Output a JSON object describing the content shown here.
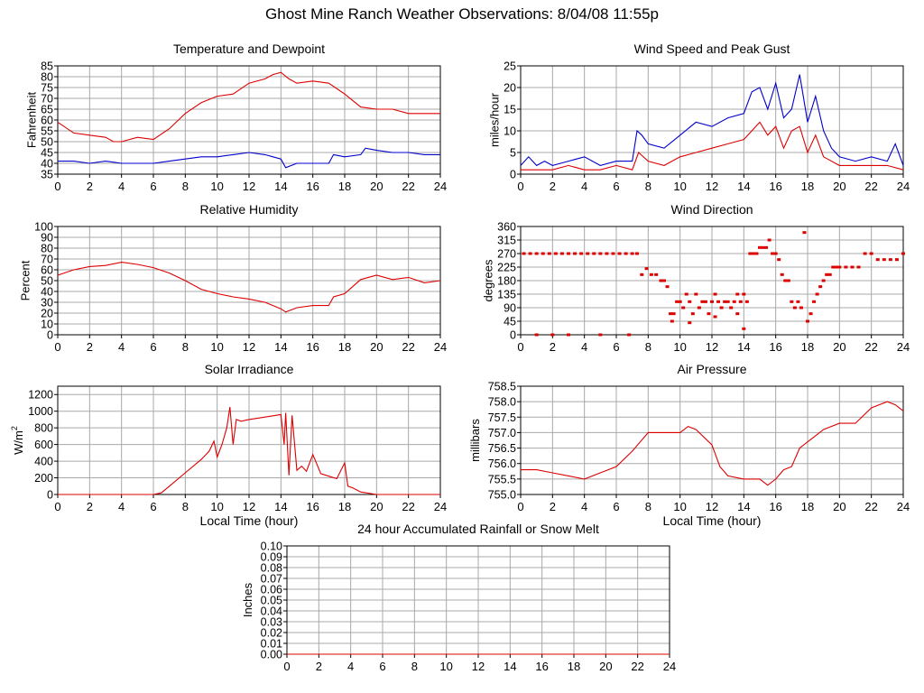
{
  "page": {
    "title": "Ghost Mine Ranch Weather Observations: 8/04/08 11:55p"
  },
  "colors": {
    "red": "#dd0000",
    "blue": "#0000cc",
    "grid": "#a8a8a8",
    "frame": "#000000"
  },
  "chart_data": [
    {
      "id": "temperature",
      "type": "line",
      "title": "Temperature and Dewpoint",
      "xlabel": "",
      "ylabel": "Fahrenheit",
      "xlim": [
        0,
        24
      ],
      "ylim": [
        35,
        85
      ],
      "xticks": [
        "0",
        "2",
        "4",
        "6",
        "8",
        "10",
        "12",
        "14",
        "16",
        "18",
        "20",
        "22",
        "24"
      ],
      "yticks": [
        "35",
        "40",
        "45",
        "50",
        "55",
        "60",
        "65",
        "70",
        "75",
        "80",
        "85"
      ],
      "series": [
        {
          "color": "red",
          "x": [
            0,
            1,
            2,
            3,
            3.5,
            4,
            5,
            6,
            7,
            8,
            9,
            10,
            11,
            12,
            13,
            13.5,
            14,
            14.5,
            15,
            16,
            17,
            18,
            19,
            20,
            21,
            22,
            23,
            24
          ],
          "y": [
            59,
            54,
            53,
            52,
            50,
            50,
            52,
            51,
            56,
            63,
            68,
            71,
            72,
            77,
            79,
            81,
            82,
            79,
            77,
            78,
            77,
            72,
            66,
            65,
            65,
            63,
            63,
            63
          ]
        },
        {
          "color": "blue",
          "x": [
            0,
            1,
            2,
            3,
            4,
            5,
            6,
            7,
            8,
            9,
            10,
            11,
            12,
            13,
            13.5,
            14,
            14.3,
            15,
            16,
            17,
            17.3,
            18,
            19,
            19.3,
            20,
            21,
            22,
            23,
            24
          ],
          "y": [
            41,
            41,
            40,
            41,
            40,
            40,
            40,
            41,
            42,
            43,
            43,
            44,
            45,
            44,
            43,
            42,
            38,
            40,
            40,
            40,
            44,
            43,
            44,
            47,
            46,
            45,
            45,
            44,
            44
          ]
        }
      ]
    },
    {
      "id": "wind",
      "type": "line",
      "title": "Wind Speed and Peak Gust",
      "xlabel": "",
      "ylabel": "miles/hour",
      "xlim": [
        0,
        24
      ],
      "ylim": [
        0,
        25
      ],
      "xticks": [
        "0",
        "2",
        "4",
        "6",
        "8",
        "10",
        "12",
        "14",
        "16",
        "18",
        "20",
        "22",
        "24"
      ],
      "yticks": [
        "0",
        "5",
        "10",
        "15",
        "20",
        "25"
      ],
      "series": [
        {
          "color": "blue",
          "x": [
            0,
            0.5,
            1,
            1.5,
            2,
            3,
            4,
            5,
            6,
            7,
            7.3,
            7.6,
            8,
            9,
            10,
            11,
            12,
            13,
            14,
            14.5,
            15,
            15.5,
            16,
            16.5,
            17,
            17.5,
            18,
            18.5,
            19,
            19.5,
            20,
            21,
            22,
            23,
            23.5,
            24
          ],
          "y": [
            2,
            4,
            2,
            3,
            2,
            3,
            4,
            2,
            3,
            3,
            10,
            9,
            7,
            6,
            9,
            12,
            11,
            13,
            14,
            19,
            20,
            15,
            21,
            13,
            15,
            23,
            12,
            18,
            10,
            6,
            4,
            3,
            4,
            3,
            7,
            2
          ]
        },
        {
          "color": "red",
          "x": [
            0,
            1,
            2,
            3,
            4,
            5,
            6,
            7,
            7.4,
            8,
            9,
            10,
            11,
            12,
            13,
            14,
            14.5,
            15,
            15.5,
            16,
            16.5,
            17,
            17.5,
            18,
            18.5,
            19,
            20,
            21,
            22,
            23,
            24
          ],
          "y": [
            1,
            1,
            1,
            2,
            1,
            1,
            2,
            1,
            5,
            3,
            2,
            4,
            5,
            6,
            7,
            8,
            10,
            12,
            9,
            11,
            6,
            10,
            11,
            5,
            9,
            4,
            2,
            2,
            2,
            2,
            1
          ]
        }
      ]
    },
    {
      "id": "humidity",
      "type": "line",
      "title": "Relative Humidity",
      "xlabel": "",
      "ylabel": "Percent",
      "xlim": [
        0,
        24
      ],
      "ylim": [
        0,
        100
      ],
      "xticks": [
        "0",
        "2",
        "4",
        "6",
        "8",
        "10",
        "12",
        "14",
        "16",
        "18",
        "20",
        "22",
        "24"
      ],
      "yticks": [
        "0",
        "10",
        "20",
        "30",
        "40",
        "50",
        "60",
        "70",
        "80",
        "90",
        "100"
      ],
      "series": [
        {
          "color": "red",
          "x": [
            0,
            1,
            2,
            3,
            4,
            5,
            6,
            7,
            8,
            9,
            10,
            11,
            12,
            13,
            14,
            14.3,
            15,
            16,
            17,
            17.3,
            18,
            19,
            20,
            21,
            22,
            23,
            24
          ],
          "y": [
            55,
            60,
            63,
            64,
            67,
            65,
            62,
            57,
            50,
            42,
            38,
            35,
            33,
            30,
            24,
            21,
            25,
            27,
            27,
            35,
            38,
            51,
            55,
            51,
            53,
            48,
            50
          ]
        }
      ]
    },
    {
      "id": "direction",
      "type": "scatter",
      "title": "Wind Direction",
      "xlabel": "",
      "ylabel": "degrees",
      "xlim": [
        0,
        24
      ],
      "ylim": [
        0,
        360
      ],
      "xticks": [
        "0",
        "2",
        "4",
        "6",
        "8",
        "10",
        "12",
        "14",
        "16",
        "18",
        "20",
        "22",
        "24"
      ],
      "yticks": [
        "0",
        "45",
        "90",
        "135",
        "180",
        "225",
        "270",
        "315",
        "360"
      ],
      "series": [
        {
          "color": "red",
          "x": [
            0.2,
            0.6,
            1,
            1.4,
            1.8,
            2.2,
            2.6,
            3,
            3.4,
            3.8,
            4.2,
            4.6,
            5,
            5.4,
            5.8,
            6.2,
            6.6,
            7,
            7.3,
            7.6,
            7.9,
            8.2,
            8.5,
            8.8,
            9,
            9.2,
            9.4,
            9.6,
            9.8,
            10,
            10.2,
            10.4,
            10.6,
            10.8,
            11,
            11.2,
            11.4,
            11.6,
            11.8,
            12,
            12.2,
            12.4,
            12.6,
            12.8,
            13,
            13.2,
            13.4,
            13.6,
            13.8,
            14,
            14.2,
            14.4,
            14.6,
            14.8,
            15,
            15.2,
            15.4,
            15.6,
            15.8,
            16,
            16.2,
            16.4,
            16.6,
            16.8,
            17,
            17.2,
            17.4,
            17.6,
            17.8,
            18,
            18.2,
            18.4,
            18.6,
            18.8,
            19,
            19.2,
            19.4,
            19.6,
            19.8,
            20,
            20.4,
            20.8,
            21.2,
            21.6,
            22,
            22.4,
            22.8,
            23.2,
            23.6,
            24,
            1,
            2,
            3,
            5,
            6.8,
            9.5,
            10.6,
            12.2,
            13.6,
            14
          ],
          "y": [
            270,
            270,
            270,
            270,
            270,
            270,
            270,
            270,
            270,
            270,
            270,
            270,
            270,
            270,
            270,
            270,
            270,
            270,
            270,
            200,
            220,
            200,
            200,
            180,
            180,
            160,
            70,
            70,
            110,
            110,
            90,
            135,
            110,
            70,
            135,
            90,
            110,
            110,
            70,
            110,
            135,
            110,
            90,
            110,
            110,
            90,
            110,
            135,
            110,
            135,
            110,
            270,
            270,
            270,
            290,
            290,
            290,
            315,
            270,
            270,
            250,
            200,
            180,
            180,
            110,
            90,
            110,
            90,
            340,
            45,
            70,
            110,
            135,
            160,
            180,
            200,
            200,
            225,
            225,
            225,
            225,
            225,
            225,
            270,
            270,
            250,
            250,
            250,
            250,
            270,
            0,
            0,
            0,
            0,
            0,
            45,
            40,
            60,
            70,
            20
          ]
        }
      ]
    },
    {
      "id": "solar",
      "type": "line",
      "title": "Solar Irradiance",
      "xlabel": "Local Time (hour)",
      "ylabel": "W/m",
      "ylabel_sup": "2",
      "xlim": [
        0,
        24
      ],
      "ylim": [
        0,
        1300
      ],
      "xticks": [
        "0",
        "2",
        "4",
        "6",
        "8",
        "10",
        "12",
        "14",
        "16",
        "18",
        "20",
        "22",
        "24"
      ],
      "yticks": [
        "0",
        "200",
        "400",
        "600",
        "800",
        "1000",
        "1200"
      ],
      "series": [
        {
          "color": "red",
          "x": [
            0,
            6,
            6.5,
            7,
            8,
            9,
            9.5,
            9.8,
            10,
            10.3,
            10.6,
            10.8,
            11,
            11.2,
            11.5,
            12,
            13,
            14,
            14.2,
            14.3,
            14.5,
            14.7,
            15,
            15.3,
            15.6,
            16,
            16.5,
            17,
            17.5,
            18,
            18.2,
            18.5,
            19,
            20,
            21,
            22,
            23,
            24
          ],
          "y": [
            0,
            0,
            20,
            100,
            260,
            420,
            520,
            640,
            450,
            600,
            800,
            1050,
            600,
            900,
            880,
            900,
            930,
            960,
            600,
            980,
            230,
            950,
            290,
            340,
            280,
            480,
            250,
            220,
            190,
            380,
            100,
            80,
            30,
            0,
            0,
            0,
            0,
            0
          ]
        }
      ]
    },
    {
      "id": "pressure",
      "type": "line",
      "title": "Air Pressure",
      "xlabel": "Local Time (hour)",
      "ylabel": "millibars",
      "xlim": [
        0,
        24
      ],
      "ylim": [
        755.0,
        758.5
      ],
      "xticks": [
        "0",
        "2",
        "4",
        "6",
        "8",
        "10",
        "12",
        "14",
        "16",
        "18",
        "20",
        "22",
        "24"
      ],
      "yticks": [
        "755.0",
        "755.5",
        "756.0",
        "756.5",
        "757.0",
        "757.5",
        "758.0",
        "758.5"
      ],
      "series": [
        {
          "color": "red",
          "x": [
            0,
            1,
            2,
            3,
            4,
            5,
            6,
            7,
            8,
            9,
            10,
            10.5,
            11,
            12,
            12.5,
            13,
            14,
            15,
            15.5,
            16,
            16.5,
            17,
            17.5,
            18,
            18.5,
            19,
            20,
            21,
            22,
            23,
            23.5,
            24
          ],
          "y": [
            755.8,
            755.8,
            755.7,
            755.6,
            755.5,
            755.7,
            755.9,
            756.4,
            757.0,
            757.0,
            757.0,
            757.2,
            757.1,
            756.6,
            755.9,
            755.6,
            755.5,
            755.5,
            755.3,
            755.5,
            755.8,
            755.9,
            756.5,
            756.7,
            756.9,
            757.1,
            757.3,
            757.3,
            757.8,
            758.0,
            757.9,
            757.7
          ]
        }
      ]
    },
    {
      "id": "rain",
      "type": "line",
      "title": "24 hour Accumulated Rainfall or Snow Melt",
      "xlabel": "",
      "ylabel": "Inches",
      "xlim": [
        0,
        24
      ],
      "ylim": [
        0,
        0.1
      ],
      "xticks": [
        "0",
        "2",
        "4",
        "6",
        "8",
        "10",
        "12",
        "14",
        "16",
        "18",
        "20",
        "22",
        "24"
      ],
      "yticks": [
        "0.00",
        "0.01",
        "0.02",
        "0.03",
        "0.04",
        "0.05",
        "0.06",
        "0.07",
        "0.08",
        "0.09",
        "0.10"
      ],
      "series": [
        {
          "color": "red",
          "x": [
            0,
            24
          ],
          "y": [
            0,
            0
          ]
        }
      ]
    }
  ]
}
